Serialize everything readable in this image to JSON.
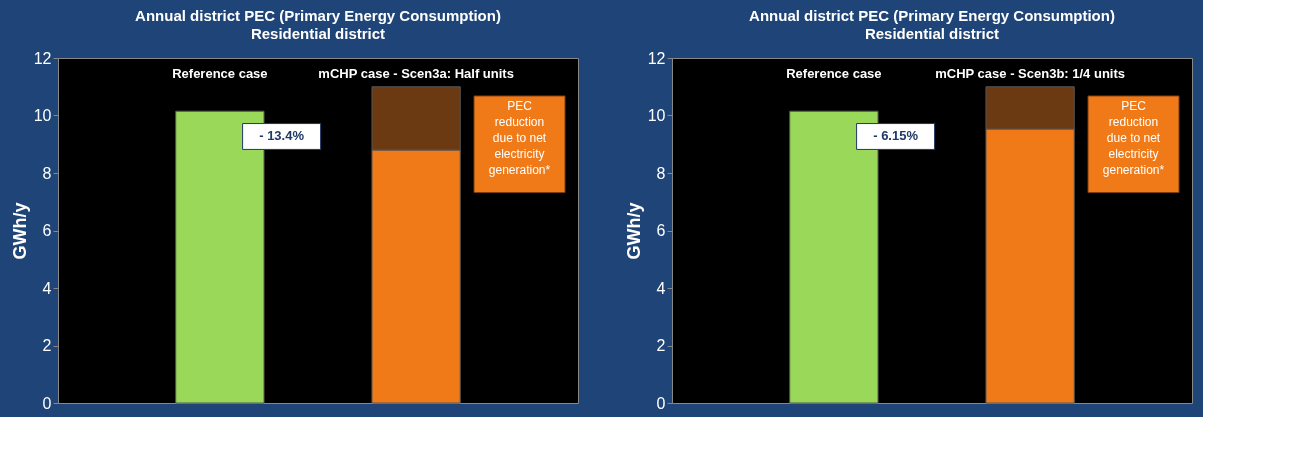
{
  "chart_data": [
    {
      "type": "bar",
      "title": "Annual district PEC (Primary Energy Consumption)",
      "subtitle": "Residential district",
      "ylabel": "GWh/y",
      "categories": [
        "Reference case",
        "mCHP case - Scen3a: Half units"
      ],
      "stacked": true,
      "ylim": [
        0,
        12
      ],
      "yticks": [
        0,
        2,
        4,
        6,
        8,
        10,
        12
      ],
      "grid": false,
      "legend": false,
      "series": [
        {
          "colors": [
            "#9ad85a",
            "#f07a18"
          ],
          "values": [
            10.15,
            8.8
          ]
        },
        {
          "color": "#6b3a12",
          "values": [
            null,
            2.2
          ]
        }
      ],
      "annotations": [
        "- 13.4%",
        "PEC reduction due to net electricity generation*"
      ]
    },
    {
      "type": "bar",
      "title": "Annual district PEC (Primary Energy Consumption)",
      "subtitle": "Residential district",
      "ylabel": "GWh/y",
      "categories": [
        "Reference case",
        "mCHP case - Scen3b: 1/4 units"
      ],
      "stacked": true,
      "ylim": [
        0,
        12
      ],
      "yticks": [
        0,
        2,
        4,
        6,
        8,
        10,
        12
      ],
      "grid": false,
      "legend": false,
      "series": [
        {
          "colors": [
            "#9ad85a",
            "#f07a18"
          ],
          "values": [
            10.15,
            9.53
          ]
        },
        {
          "color": "#6b3a12",
          "values": [
            null,
            1.47
          ]
        }
      ],
      "annotations": [
        "- 6.15%",
        "PEC reduction due to net electricity generation*"
      ]
    }
  ]
}
